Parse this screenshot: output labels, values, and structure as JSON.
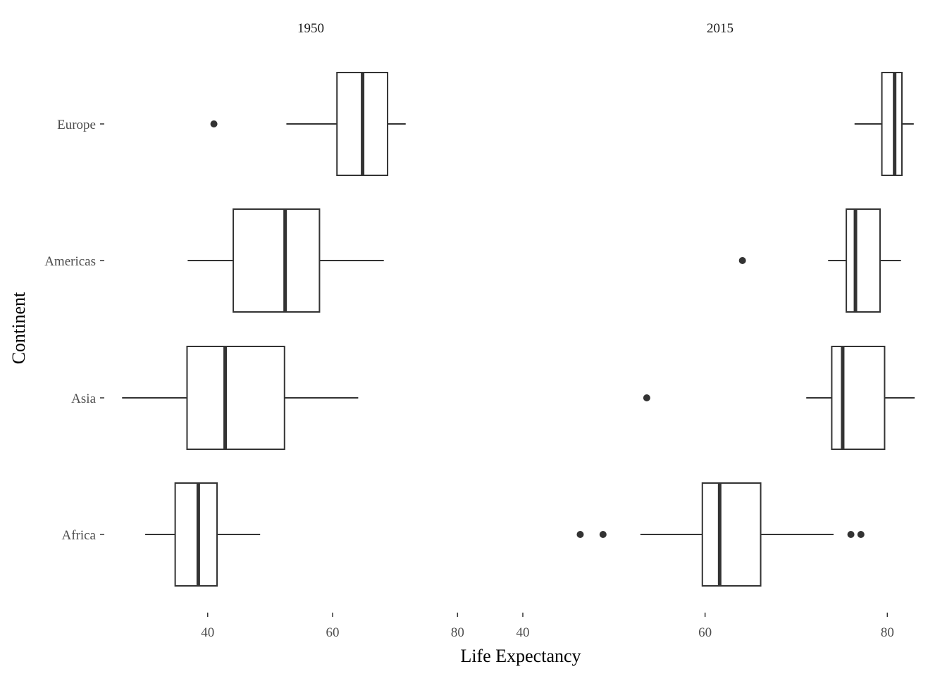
{
  "chart_data": {
    "type": "boxplot",
    "xlabel": "Life Expectancy",
    "ylabel": "Continent",
    "facets": [
      "1950",
      "2015"
    ],
    "categories": [
      "Europe",
      "Americas",
      "Asia",
      "Africa"
    ],
    "x_ticks": [
      40,
      60,
      80
    ],
    "grid": false,
    "panels": [
      {
        "facet": "1950",
        "xlim": [
          23,
          90
        ],
        "boxes": [
          {
            "category": "Europe",
            "whisker_low": 52.6,
            "q1": 60.7,
            "median": 64.8,
            "q3": 68.8,
            "whisker_high": 71.7,
            "outliers": [
              41.0
            ]
          },
          {
            "category": "Americas",
            "whisker_low": 36.8,
            "q1": 44.1,
            "median": 52.4,
            "q3": 57.9,
            "whisker_high": 68.2,
            "outliers": []
          },
          {
            "category": "Asia",
            "whisker_low": 26.3,
            "q1": 36.7,
            "median": 42.8,
            "q3": 52.3,
            "whisker_high": 64.1,
            "outliers": []
          },
          {
            "category": "Africa",
            "whisker_low": 30.0,
            "q1": 34.8,
            "median": 38.5,
            "q3": 41.5,
            "whisker_high": 48.4,
            "outliers": []
          }
        ]
      },
      {
        "facet": "2015",
        "xlim": [
          40,
          83.3
        ],
        "boxes": [
          {
            "category": "Europe",
            "whisker_low": 76.4,
            "q1": 79.4,
            "median": 80.8,
            "q3": 81.6,
            "whisker_high": 82.9,
            "outliers": []
          },
          {
            "category": "Americas",
            "whisker_low": 73.5,
            "q1": 75.5,
            "median": 76.5,
            "q3": 79.2,
            "whisker_high": 81.5,
            "outliers": [
              64.1
            ]
          },
          {
            "category": "Asia",
            "whisker_low": 71.1,
            "q1": 73.9,
            "median": 75.1,
            "q3": 79.7,
            "whisker_high": 83.0,
            "outliers": [
              53.6
            ]
          },
          {
            "category": "Africa",
            "whisker_low": 52.9,
            "q1": 59.7,
            "median": 61.6,
            "q3": 66.1,
            "whisker_high": 74.1,
            "outliers": [
              46.3,
              48.8,
              76.0,
              77.1
            ]
          }
        ]
      }
    ]
  }
}
